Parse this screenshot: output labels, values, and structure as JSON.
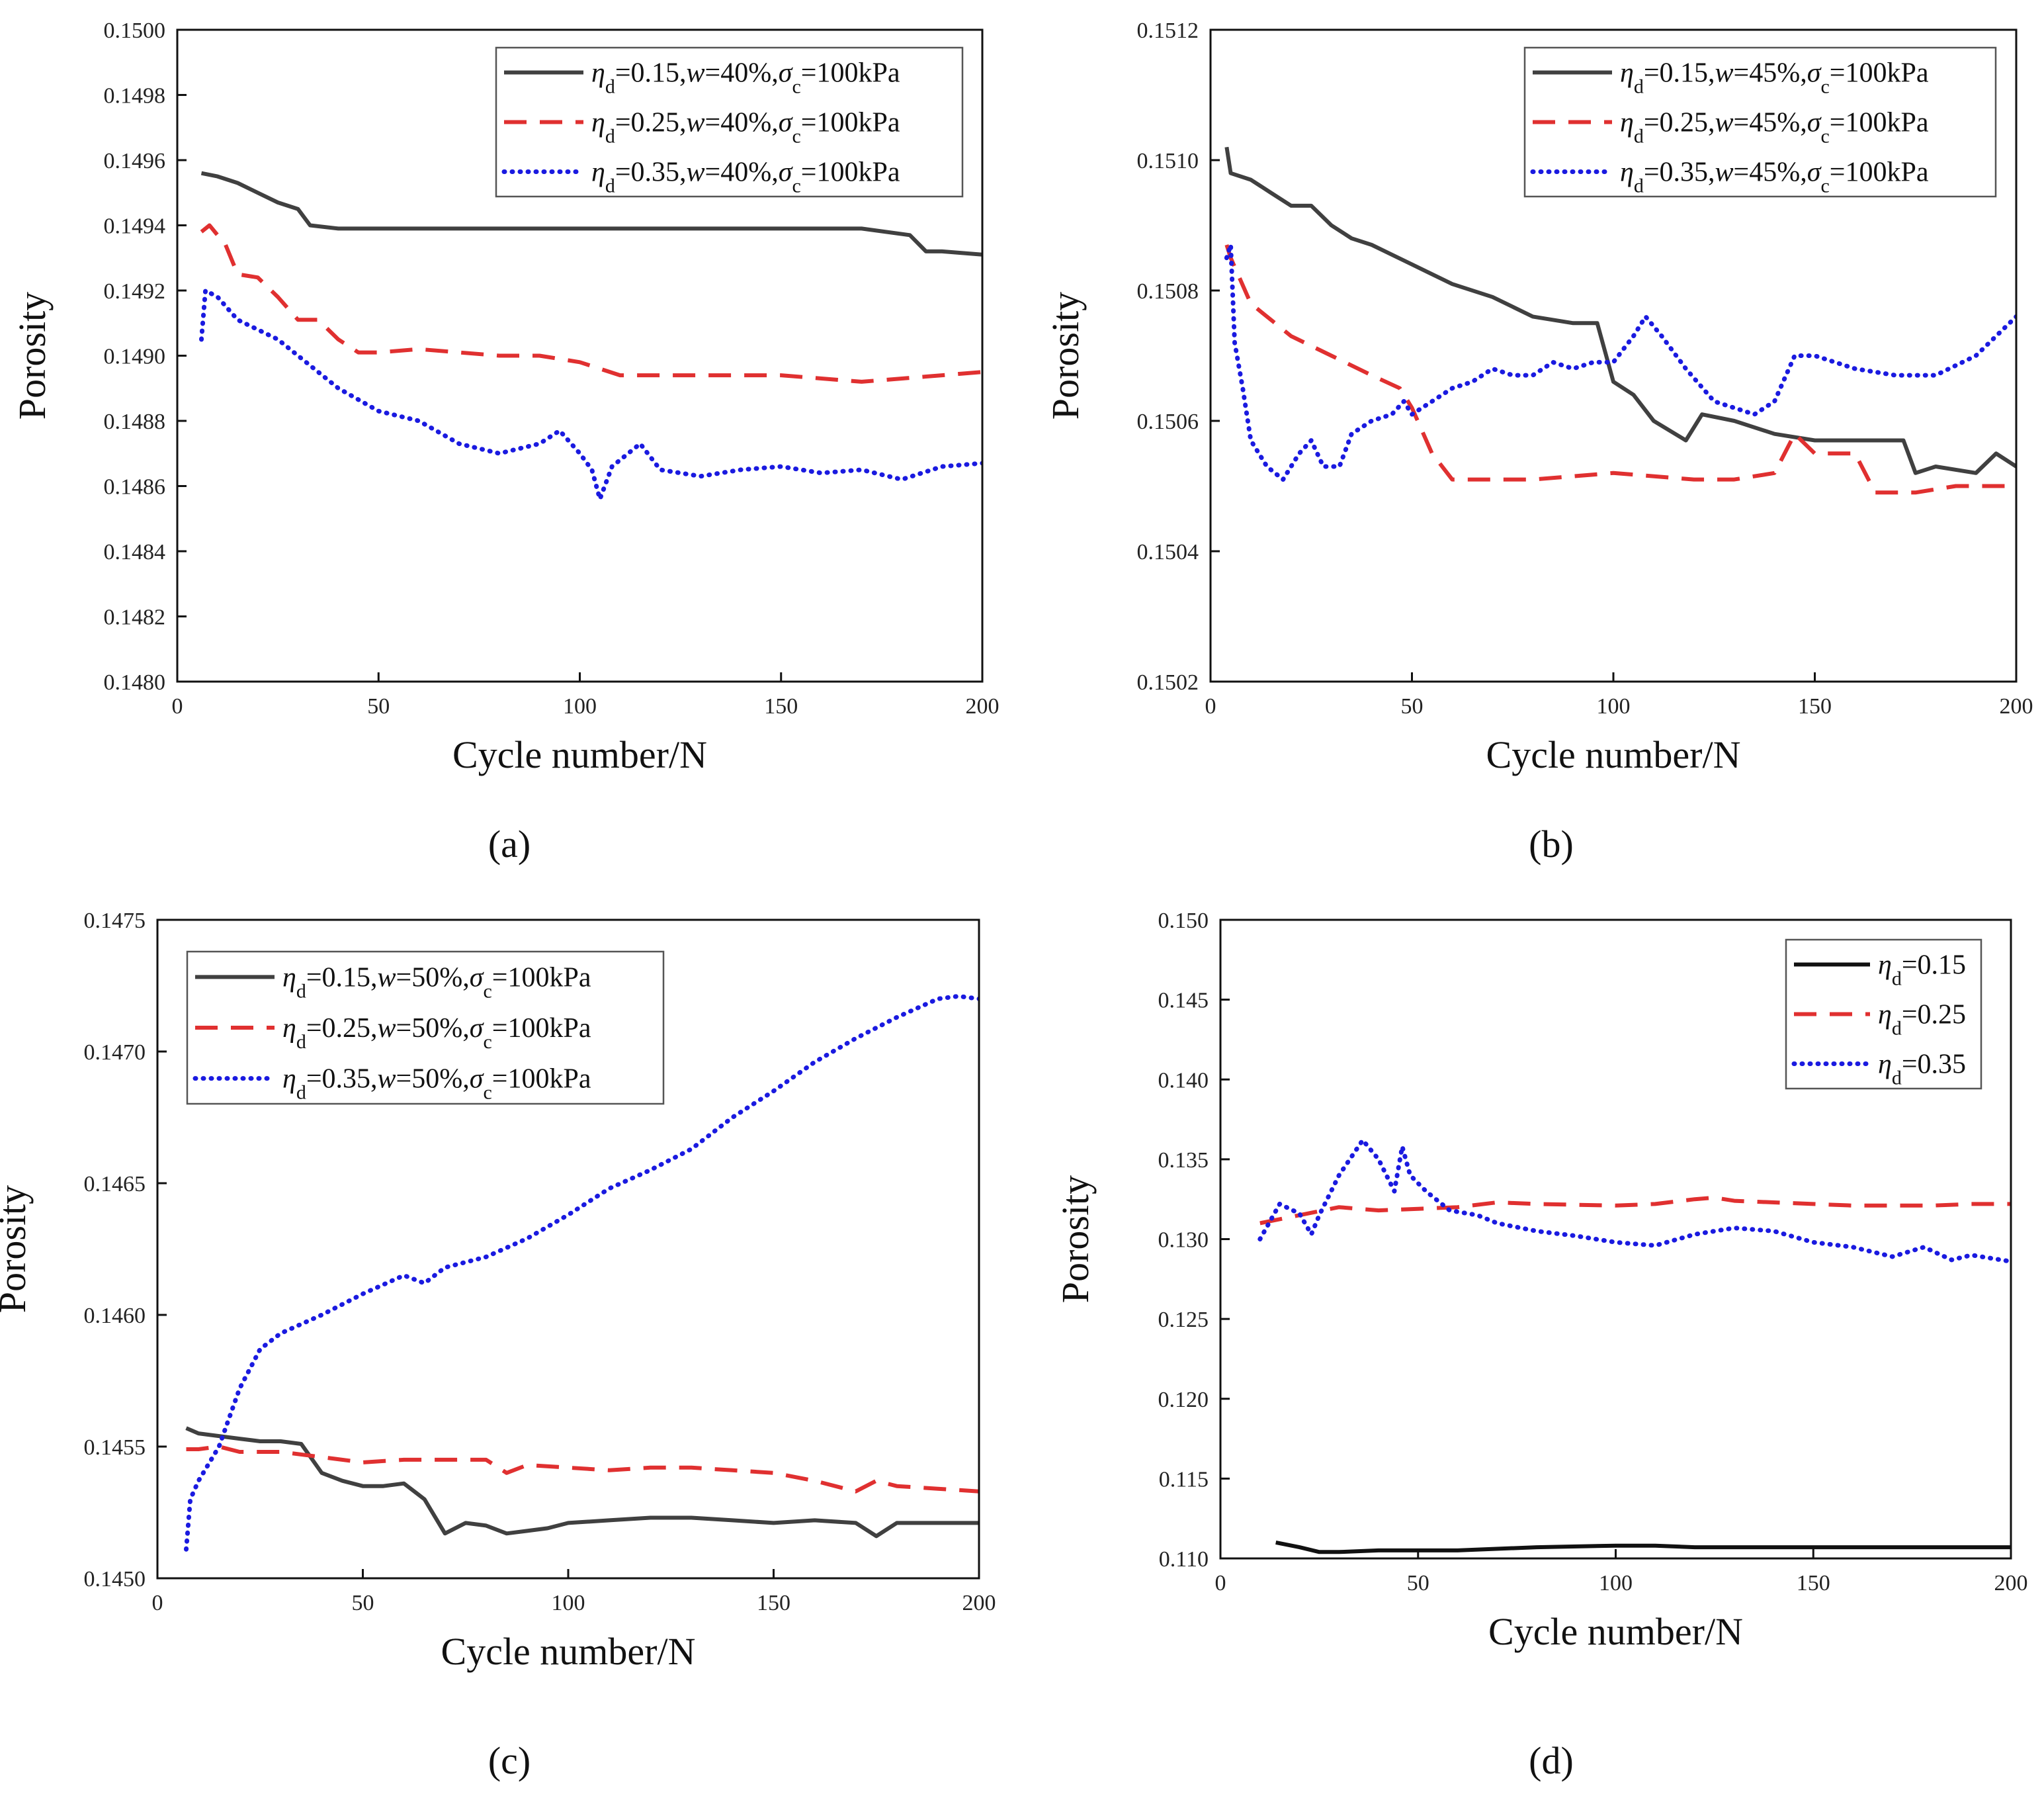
{
  "panel_tags": [
    "(a)",
    "(b)",
    "(c)",
    "(d)"
  ],
  "chart_data": [
    {
      "type": "line",
      "panel": "a",
      "xlabel": "Cycle number/N",
      "ylabel": "Porosity",
      "xlim": [
        0,
        200
      ],
      "ylim": [
        0.148,
        0.15
      ],
      "xticks": [
        "0",
        "50",
        "100",
        "150",
        "200"
      ],
      "yticks": [
        "0.1480",
        "0.1482",
        "0.1484",
        "0.1486",
        "0.1488",
        "0.1490",
        "0.1492",
        "0.1494",
        "0.1496",
        "0.1498",
        "0.1500"
      ],
      "legend_position": "top-right",
      "series": [
        {
          "name": "ηd=0.15,w=40%,σc=100kPa",
          "eta": "0.15",
          "w": "40%",
          "sigma": "100kPa",
          "color": "#404040",
          "dash": "solid",
          "x": [
            6,
            10,
            15,
            20,
            25,
            30,
            33,
            40,
            50,
            60,
            80,
            100,
            120,
            150,
            170,
            182,
            186,
            190,
            200
          ],
          "y": [
            0.14956,
            0.14955,
            0.14953,
            0.1495,
            0.14947,
            0.14945,
            0.1494,
            0.14939,
            0.14939,
            0.14939,
            0.14939,
            0.14939,
            0.14939,
            0.14939,
            0.14939,
            0.14937,
            0.14932,
            0.14932,
            0.14931
          ]
        },
        {
          "name": "ηd=0.25,w=40%,σc=100kPa",
          "eta": "0.25",
          "w": "40%",
          "sigma": "100kPa",
          "color": "#e03030",
          "dash": "dashed",
          "x": [
            6,
            8,
            12,
            15,
            20,
            25,
            30,
            35,
            40,
            45,
            50,
            60,
            80,
            90,
            100,
            110,
            130,
            150,
            170,
            190,
            200
          ],
          "y": [
            0.14938,
            0.1494,
            0.14934,
            0.14925,
            0.14924,
            0.14918,
            0.14911,
            0.14911,
            0.14905,
            0.14901,
            0.14901,
            0.14902,
            0.149,
            0.149,
            0.14898,
            0.14894,
            0.14894,
            0.14894,
            0.14892,
            0.14894,
            0.14895
          ]
        },
        {
          "name": "ηd=0.35,w=40%,σc=100kPa",
          "eta": "0.35",
          "w": "40%",
          "sigma": "100kPa",
          "color": "#1a1ae0",
          "dash": "dotted",
          "x": [
            6,
            7,
            10,
            15,
            20,
            25,
            30,
            40,
            50,
            60,
            70,
            80,
            90,
            95,
            100,
            103,
            105,
            108,
            115,
            120,
            130,
            140,
            150,
            160,
            170,
            180,
            190,
            200
          ],
          "y": [
            0.14905,
            0.1492,
            0.14918,
            0.14911,
            0.14908,
            0.14905,
            0.149,
            0.1489,
            0.14883,
            0.1488,
            0.14873,
            0.1487,
            0.14873,
            0.14877,
            0.1487,
            0.14865,
            0.14856,
            0.14866,
            0.14873,
            0.14865,
            0.14863,
            0.14865,
            0.14866,
            0.14864,
            0.14865,
            0.14862,
            0.14866,
            0.14867
          ]
        }
      ]
    },
    {
      "type": "line",
      "panel": "b",
      "xlabel": "Cycle number/N",
      "ylabel": "Porosity",
      "xlim": [
        0,
        200
      ],
      "ylim": [
        0.1502,
        0.1512
      ],
      "xticks": [
        "0",
        "50",
        "100",
        "150",
        "200"
      ],
      "yticks": [
        "0.1502",
        "0.1504",
        "0.1506",
        "0.1508",
        "0.1510",
        "0.1512"
      ],
      "legend_position": "top-right",
      "series": [
        {
          "name": "ηd=0.15,w=45%,σc=100kPa",
          "eta": "0.15",
          "w": "45%",
          "sigma": "100kPa",
          "color": "#404040",
          "dash": "solid",
          "x": [
            4,
            5,
            10,
            15,
            20,
            25,
            30,
            35,
            40,
            50,
            60,
            70,
            80,
            90,
            96,
            100,
            105,
            110,
            118,
            122,
            130,
            140,
            150,
            160,
            172,
            175,
            180,
            190,
            195,
            200
          ],
          "y": [
            0.15102,
            0.15098,
            0.15097,
            0.15095,
            0.15093,
            0.15093,
            0.1509,
            0.15088,
            0.15087,
            0.15084,
            0.15081,
            0.15079,
            0.15076,
            0.15075,
            0.15075,
            0.15066,
            0.15064,
            0.1506,
            0.15057,
            0.15061,
            0.1506,
            0.15058,
            0.15057,
            0.15057,
            0.15057,
            0.15052,
            0.15053,
            0.15052,
            0.15055,
            0.15053
          ]
        },
        {
          "name": "ηd=0.25,w=45%,σc=100kPa",
          "eta": "0.25",
          "w": "45%",
          "sigma": "100kPa",
          "color": "#e03030",
          "dash": "dashed",
          "x": [
            4,
            5,
            10,
            20,
            30,
            40,
            47,
            50,
            55,
            60,
            70,
            80,
            100,
            120,
            130,
            140,
            145,
            150,
            160,
            165,
            175,
            185,
            200
          ],
          "y": [
            0.15087,
            0.15085,
            0.15078,
            0.15073,
            0.1507,
            0.15067,
            0.15065,
            0.15062,
            0.15055,
            0.15051,
            0.15051,
            0.15051,
            0.15052,
            0.15051,
            0.15051,
            0.15052,
            0.15058,
            0.15055,
            0.15055,
            0.15049,
            0.15049,
            0.1505,
            0.1505
          ]
        },
        {
          "name": "ηd=0.35,w=45%,σc=100kPa",
          "eta": "0.35",
          "w": "45%",
          "sigma": "100kPa",
          "color": "#1a1ae0",
          "dash": "dotted",
          "x": [
            4,
            5,
            6,
            8,
            10,
            14,
            18,
            22,
            25,
            28,
            32,
            35,
            40,
            45,
            48,
            50,
            55,
            60,
            65,
            70,
            75,
            80,
            85,
            90,
            95,
            100,
            105,
            108,
            112,
            118,
            125,
            135,
            140,
            145,
            150,
            160,
            170,
            180,
            190,
            200
          ],
          "y": [
            0.15085,
            0.15087,
            0.15072,
            0.15065,
            0.15057,
            0.15053,
            0.15051,
            0.15055,
            0.15057,
            0.15053,
            0.15053,
            0.15058,
            0.1506,
            0.15061,
            0.15063,
            0.15061,
            0.15063,
            0.15065,
            0.15066,
            0.15068,
            0.15067,
            0.15067,
            0.15069,
            0.15068,
            0.15069,
            0.15069,
            0.15073,
            0.15076,
            0.15073,
            0.15068,
            0.15063,
            0.15061,
            0.15063,
            0.1507,
            0.1507,
            0.15068,
            0.15067,
            0.15067,
            0.1507,
            0.15076
          ]
        }
      ]
    },
    {
      "type": "line",
      "panel": "c",
      "xlabel": "Cycle number/N",
      "ylabel": "Porosity",
      "xlim": [
        0,
        200
      ],
      "ylim": [
        0.145,
        0.1475
      ],
      "xticks": [
        "0",
        "50",
        "100",
        "150",
        "200"
      ],
      "yticks": [
        "0.1450",
        "0.1455",
        "0.1460",
        "0.1465",
        "0.1470",
        "0.1475"
      ],
      "legend_position": "top-left",
      "series": [
        {
          "name": "ηd=0.15,w=50%,σc=100kPa",
          "eta": "0.15",
          "w": "50%",
          "sigma": "100kPa",
          "color": "#404040",
          "dash": "solid",
          "x": [
            7,
            10,
            15,
            20,
            25,
            30,
            35,
            40,
            45,
            50,
            55,
            60,
            65,
            70,
            75,
            80,
            85,
            90,
            95,
            100,
            110,
            120,
            130,
            140,
            150,
            160,
            170,
            175,
            180,
            190,
            200
          ],
          "y": [
            0.14557,
            0.14555,
            0.14554,
            0.14553,
            0.14552,
            0.14552,
            0.14551,
            0.1454,
            0.14537,
            0.14535,
            0.14535,
            0.14536,
            0.1453,
            0.14517,
            0.14521,
            0.1452,
            0.14517,
            0.14518,
            0.14519,
            0.14521,
            0.14522,
            0.14523,
            0.14523,
            0.14522,
            0.14521,
            0.14522,
            0.14521,
            0.14516,
            0.14521,
            0.14521,
            0.14521
          ]
        },
        {
          "name": "ηd=0.25,w=50%,σc=100kPa",
          "eta": "0.25",
          "w": "50%",
          "sigma": "100kPa",
          "color": "#e03030",
          "dash": "dashed",
          "x": [
            7,
            10,
            15,
            20,
            25,
            30,
            40,
            50,
            60,
            70,
            80,
            85,
            90,
            100,
            110,
            120,
            130,
            140,
            150,
            160,
            170,
            175,
            180,
            190,
            200
          ],
          "y": [
            0.14549,
            0.14549,
            0.1455,
            0.14548,
            0.14548,
            0.14548,
            0.14546,
            0.14544,
            0.14545,
            0.14545,
            0.14545,
            0.1454,
            0.14543,
            0.14542,
            0.14541,
            0.14542,
            0.14542,
            0.14541,
            0.1454,
            0.14537,
            0.14533,
            0.14537,
            0.14535,
            0.14534,
            0.14533
          ]
        },
        {
          "name": "ηd=0.35,w=50%,σc=100kPa",
          "eta": "0.35",
          "w": "50%",
          "sigma": "100kPa",
          "color": "#1a1ae0",
          "dash": "dotted",
          "x": [
            7,
            8,
            10,
            15,
            20,
            25,
            30,
            40,
            50,
            60,
            65,
            70,
            80,
            90,
            100,
            110,
            120,
            130,
            140,
            150,
            160,
            170,
            180,
            190,
            195,
            200
          ],
          "y": [
            0.14511,
            0.1453,
            0.14537,
            0.1455,
            0.14572,
            0.14587,
            0.14593,
            0.146,
            0.14608,
            0.14615,
            0.14612,
            0.14618,
            0.14622,
            0.14629,
            0.14638,
            0.14648,
            0.14655,
            0.14663,
            0.14675,
            0.14685,
            0.14696,
            0.14705,
            0.14713,
            0.1472,
            0.14721,
            0.1472
          ]
        }
      ]
    },
    {
      "type": "line",
      "panel": "d",
      "xlabel": "Cycle number/N",
      "ylabel": "Porosity",
      "xlim": [
        0,
        200
      ],
      "ylim": [
        0.11,
        0.15
      ],
      "xticks": [
        "0",
        "50",
        "100",
        "150",
        "200"
      ],
      "yticks": [
        "0.110",
        "0.115",
        "0.120",
        "0.125",
        "0.130",
        "0.135",
        "0.140",
        "0.145",
        "0.150"
      ],
      "legend_position": "top-right",
      "series": [
        {
          "name": "ηd=0.15",
          "eta": "0.15",
          "w": "",
          "sigma": "",
          "color": "#111111",
          "dash": "solid",
          "x": [
            14,
            20,
            25,
            30,
            40,
            50,
            60,
            80,
            100,
            110,
            120,
            140,
            160,
            180,
            200
          ],
          "y": [
            0.111,
            0.1107,
            0.1104,
            0.1104,
            0.1105,
            0.1105,
            0.1105,
            0.1107,
            0.1108,
            0.1108,
            0.1107,
            0.1107,
            0.1107,
            0.1107,
            0.1107
          ]
        },
        {
          "name": "ηd=0.25",
          "eta": "0.25",
          "w": "",
          "sigma": "",
          "color": "#e03030",
          "dash": "dashed",
          "x": [
            10,
            20,
            30,
            40,
            50,
            60,
            70,
            80,
            100,
            110,
            120,
            125,
            130,
            140,
            150,
            160,
            170,
            180,
            190,
            200
          ],
          "y": [
            0.131,
            0.1315,
            0.132,
            0.1318,
            0.1319,
            0.132,
            0.1323,
            0.1322,
            0.1321,
            0.1322,
            0.1325,
            0.1326,
            0.1324,
            0.1323,
            0.1322,
            0.1321,
            0.1321,
            0.1321,
            0.1322,
            0.1322
          ]
        },
        {
          "name": "ηd=0.35",
          "eta": "0.35",
          "w": "",
          "sigma": "",
          "color": "#1a1ae0",
          "dash": "dotted",
          "x": [
            10,
            15,
            20,
            23,
            25,
            30,
            36,
            40,
            44,
            46,
            48,
            52,
            58,
            65,
            70,
            80,
            90,
            100,
            110,
            120,
            130,
            140,
            150,
            160,
            170,
            178,
            185,
            190,
            200
          ],
          "y": [
            0.13,
            0.1322,
            0.1316,
            0.1303,
            0.1315,
            0.134,
            0.1362,
            0.135,
            0.133,
            0.1358,
            0.134,
            0.133,
            0.1318,
            0.1315,
            0.131,
            0.1305,
            0.1302,
            0.1298,
            0.1296,
            0.1303,
            0.1307,
            0.1305,
            0.1298,
            0.1295,
            0.1289,
            0.1295,
            0.1287,
            0.129,
            0.1286
          ]
        }
      ]
    }
  ]
}
